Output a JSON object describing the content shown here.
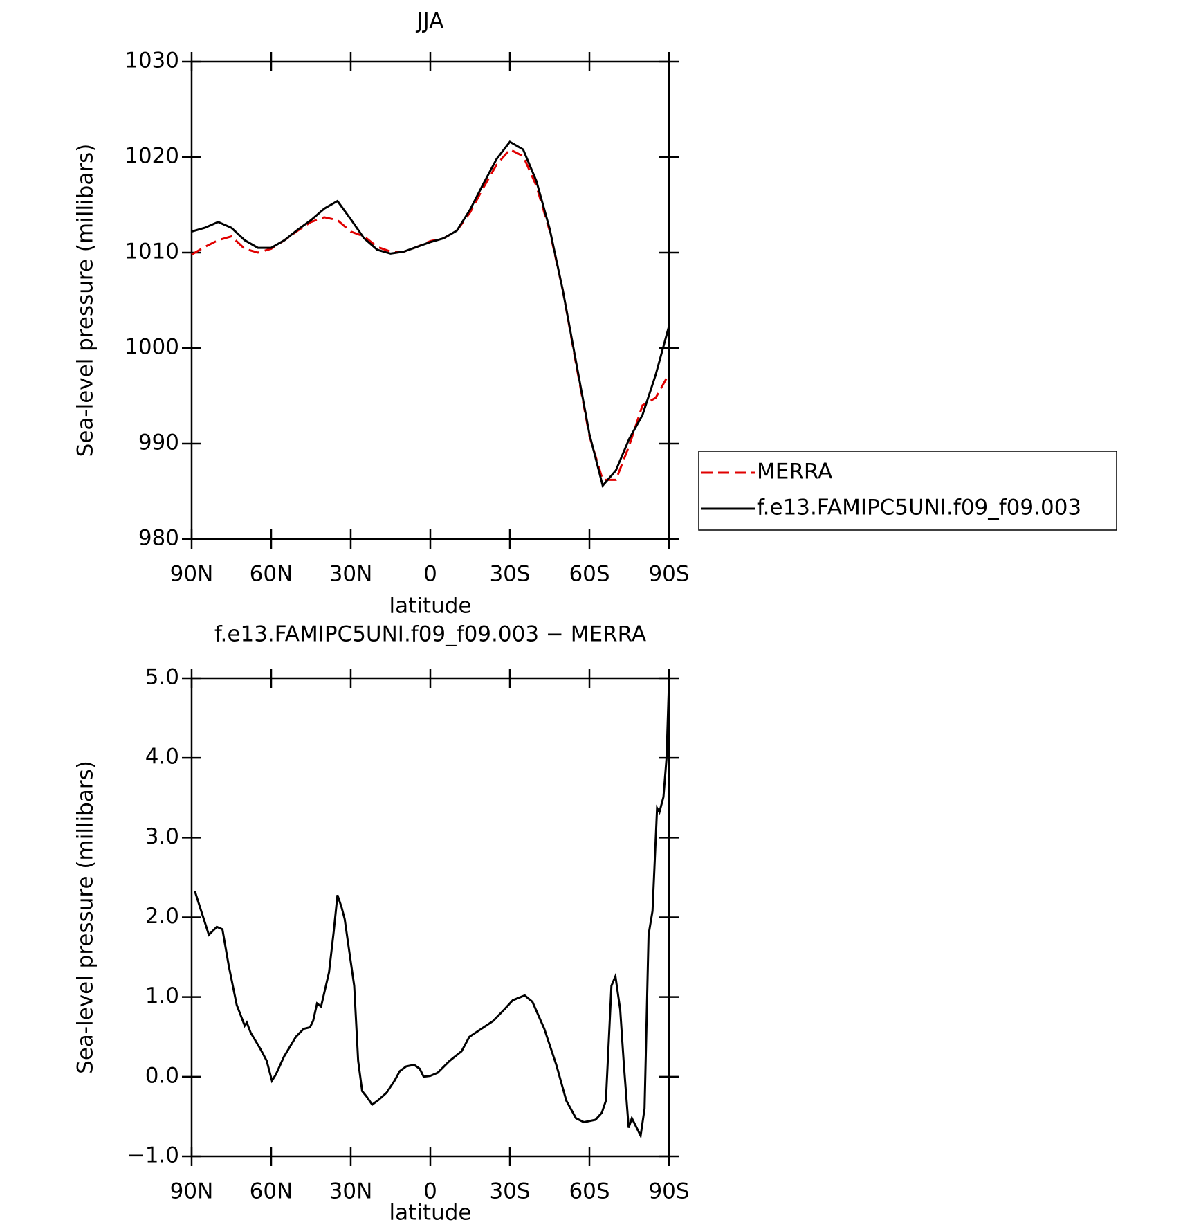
{
  "chart_data": [
    {
      "type": "line",
      "title": "JJA",
      "xlabel": "latitude",
      "ylabel": "Sea-level pressure (millibars)",
      "x": [
        90,
        85,
        80,
        75,
        70,
        65,
        60,
        55,
        50,
        45,
        40,
        35,
        30,
        25,
        20,
        15,
        10,
        5,
        0,
        -5,
        -10,
        -15,
        -20,
        -25,
        -30,
        -35,
        -40,
        -45,
        -50,
        -55,
        -60,
        -65,
        -70,
        -75,
        -80,
        -85,
        -90
      ],
      "series": [
        {
          "name": "MERRA",
          "color": "#e00000",
          "linestyle": "dashed",
          "values": [
            1009.8,
            1010.6,
            1011.3,
            1011.7,
            1010.4,
            1010.0,
            1010.4,
            1011.3,
            1012.3,
            1013.2,
            1013.7,
            1013.4,
            1012.2,
            1011.7,
            1010.6,
            1010.1,
            1010.1,
            1010.6,
            1011.2,
            1011.5,
            1012.3,
            1014.2,
            1016.8,
            1019.2,
            1020.8,
            1020.1,
            1017.0,
            1012.3,
            1006.0,
            998.3,
            990.8,
            986.2,
            986.2,
            989.8,
            994.0,
            994.8,
            997.3
          ]
        },
        {
          "name": "f.e13.FAMIPC5UNI.f09_f09.003",
          "color": "#000000",
          "linestyle": "solid",
          "values": [
            1012.2,
            1012.6,
            1013.2,
            1012.6,
            1011.3,
            1010.5,
            1010.5,
            1011.3,
            1012.4,
            1013.4,
            1014.6,
            1015.4,
            1013.5,
            1011.5,
            1010.3,
            1009.9,
            1010.1,
            1010.6,
            1011.1,
            1011.5,
            1012.3,
            1014.5,
            1017.2,
            1019.8,
            1021.6,
            1020.8,
            1017.5,
            1012.5,
            1006.0,
            998.5,
            991.0,
            985.6,
            987.2,
            990.5,
            993.0,
            997.2,
            1002.3
          ]
        }
      ],
      "xlim": [
        90,
        -90
      ],
      "xticks": [
        {
          "value": 90,
          "label": "90N"
        },
        {
          "value": 60,
          "label": "60N"
        },
        {
          "value": 30,
          "label": "30N"
        },
        0,
        {
          "value": -30,
          "label": "30S"
        },
        {
          "value": -60,
          "label": "60S"
        },
        {
          "value": -90,
          "label": "90S"
        }
      ],
      "ylim": [
        980,
        1030
      ],
      "yticks": [
        980,
        990,
        1000,
        1010,
        1020,
        1030
      ],
      "legend": "right"
    },
    {
      "type": "line",
      "title": "f.e13.FAMIPC5UNI.f09_f09.003 − MERRA",
      "xlabel": "latitude",
      "ylabel": "Sea-level pressure (millibars)",
      "x": [
        88.8,
        83.5,
        80.5,
        78.4,
        76,
        73,
        70,
        69.2,
        67.7,
        64.1,
        61.7,
        59.7,
        58.2,
        55.2,
        50.7,
        47.8,
        45.4,
        44.2,
        42.7,
        41.2,
        38.2,
        36.4,
        35,
        33.5,
        32.3,
        30.2,
        28.7,
        27.2,
        25.7,
        24,
        21.9,
        19.5,
        16.5,
        13.5,
        11.5,
        9.1,
        6.1,
        4,
        2.5,
        0.1,
        -2.8,
        -7.3,
        -11.8,
        -14.7,
        -19.2,
        -23.7,
        -28.1,
        -31.1,
        -35.6,
        -38.5,
        -43,
        -47.5,
        -51.3,
        -54.9,
        -57.9,
        -62.3,
        -64.7,
        -66.2,
        -68.3,
        -69.8,
        -71.6,
        -73,
        -74.8,
        -76,
        -79.3,
        -80.8,
        -82.3,
        -83.8,
        -85.5,
        -86.4,
        -87.9,
        -89.1,
        -90
      ],
      "series": [
        {
          "color": "#000000",
          "values": [
            2.33,
            1.78,
            1.88,
            1.85,
            1.39,
            0.9,
            0.64,
            0.68,
            0.55,
            0.35,
            0.2,
            -0.05,
            0.03,
            0.25,
            0.5,
            0.6,
            0.62,
            0.7,
            0.92,
            0.88,
            1.31,
            1.83,
            2.28,
            2.13,
            1.98,
            1.49,
            1.14,
            0.2,
            -0.18,
            -0.25,
            -0.35,
            -0.29,
            -0.2,
            -0.05,
            0.07,
            0.13,
            0.15,
            0.1,
            0.0,
            0.01,
            0.05,
            0.2,
            0.32,
            0.5,
            0.6,
            0.7,
            0.85,
            0.96,
            1.02,
            0.94,
            0.6,
            0.15,
            -0.3,
            -0.52,
            -0.57,
            -0.54,
            -0.45,
            -0.3,
            1.14,
            1.26,
            0.84,
            0.15,
            -0.64,
            -0.52,
            -0.74,
            -0.4,
            1.78,
            2.08,
            3.37,
            3.32,
            3.51,
            4.0,
            4.95
          ]
        }
      ],
      "xlim": [
        90,
        -90
      ],
      "xticks": [
        {
          "value": 90,
          "label": "90N"
        },
        {
          "value": 60,
          "label": "60N"
        },
        {
          "value": 30,
          "label": "30N"
        },
        0,
        {
          "value": -30,
          "label": "30S"
        },
        {
          "value": -60,
          "label": "60S"
        },
        {
          "value": -90,
          "label": "90S"
        }
      ],
      "ylim": [
        -1,
        5
      ],
      "yticks": [
        {
          "value": -1,
          "label": "−1.0"
        },
        {
          "value": 0,
          "label": "0.0"
        },
        {
          "value": 1,
          "label": "1.0"
        },
        {
          "value": 2,
          "label": "2.0"
        },
        {
          "value": 3,
          "label": "3.0"
        },
        {
          "value": 4,
          "label": "4.0"
        },
        {
          "value": 5,
          "label": "5.0"
        }
      ]
    }
  ]
}
